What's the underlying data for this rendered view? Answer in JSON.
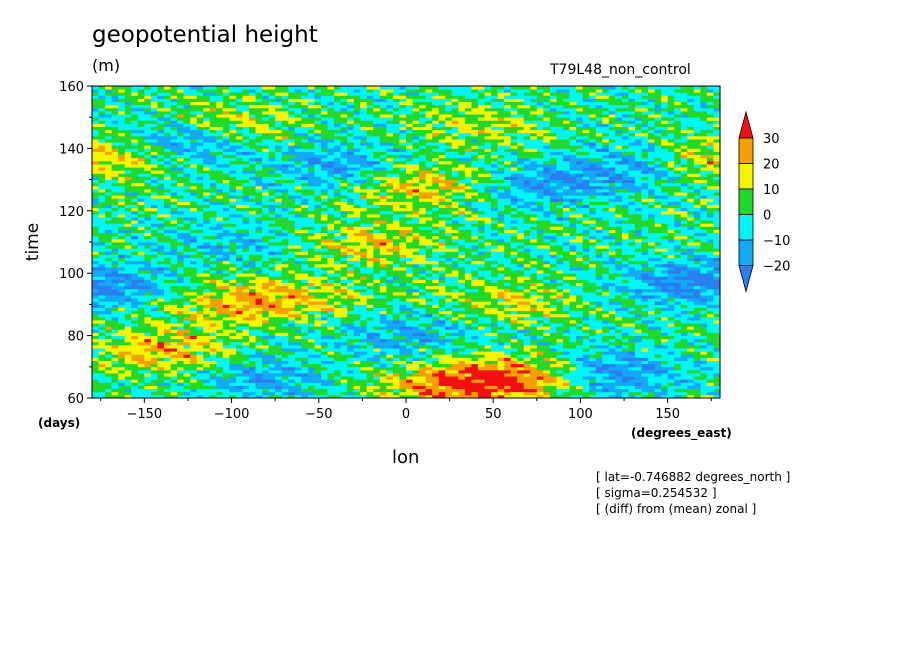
{
  "chart_data": {
    "type": "heatmap",
    "title": "geopotential height",
    "units": "(m)",
    "run_label": "T79L48_non_control",
    "xlabel": "lon",
    "ylabel": "time",
    "x_unit_label": "(degrees_east)",
    "y_unit_label": "(days)",
    "xlim": [
      -180,
      180
    ],
    "ylim": [
      60,
      160
    ],
    "x_ticks": [
      -150,
      -100,
      -50,
      0,
      50,
      100,
      150
    ],
    "y_ticks": [
      60,
      80,
      100,
      120,
      140,
      160
    ],
    "colorbar": {
      "levels": [
        -20,
        -10,
        0,
        10,
        20,
        30
      ],
      "colors": [
        "#2a7ff0",
        "#12aaf7",
        "#00f5f5",
        "#22d82a",
        "#f5f500",
        "#f5a000",
        "#f01010"
      ],
      "extend": "both"
    },
    "annotations": [
      "[ lat=-0.746882 degrees_north ]",
      "[ sigma=0.254532 ]",
      "[ (diff) from (mean) zonal ]"
    ],
    "features": [
      {
        "lon": 60,
        "time": 66,
        "amplitude": 32
      },
      {
        "lon": 20,
        "time": 64,
        "amplitude": 22
      },
      {
        "lon": -140,
        "time": 75,
        "amplitude": 22
      },
      {
        "lon": -100,
        "time": 90,
        "amplitude": 18
      },
      {
        "lon": -60,
        "time": 93,
        "amplitude": 14
      },
      {
        "lon": 60,
        "time": 91,
        "amplitude": 14
      },
      {
        "lon": -20,
        "time": 110,
        "amplitude": 18
      },
      {
        "lon": 10,
        "time": 128,
        "amplitude": 20
      },
      {
        "lon": -170,
        "time": 138,
        "amplitude": 22
      },
      {
        "lon": 175,
        "time": 137,
        "amplitude": 18
      },
      {
        "lon": -100,
        "time": 148,
        "amplitude": 14
      },
      {
        "lon": 40,
        "time": 148,
        "amplitude": 12
      },
      {
        "lon": -130,
        "time": 142,
        "amplitude": -22
      },
      {
        "lon": -40,
        "time": 135,
        "amplitude": -16
      },
      {
        "lon": 80,
        "time": 128,
        "amplitude": -18
      },
      {
        "lon": 130,
        "time": 135,
        "amplitude": -16
      },
      {
        "lon": -175,
        "time": 96,
        "amplitude": -24
      },
      {
        "lon": 165,
        "time": 97,
        "amplitude": -24
      },
      {
        "lon": 120,
        "time": 68,
        "amplitude": -20
      },
      {
        "lon": -80,
        "time": 66,
        "amplitude": -16
      },
      {
        "lon": 0,
        "time": 80,
        "amplitude": -14
      },
      {
        "lon": -100,
        "time": 110,
        "amplitude": -10
      }
    ]
  }
}
